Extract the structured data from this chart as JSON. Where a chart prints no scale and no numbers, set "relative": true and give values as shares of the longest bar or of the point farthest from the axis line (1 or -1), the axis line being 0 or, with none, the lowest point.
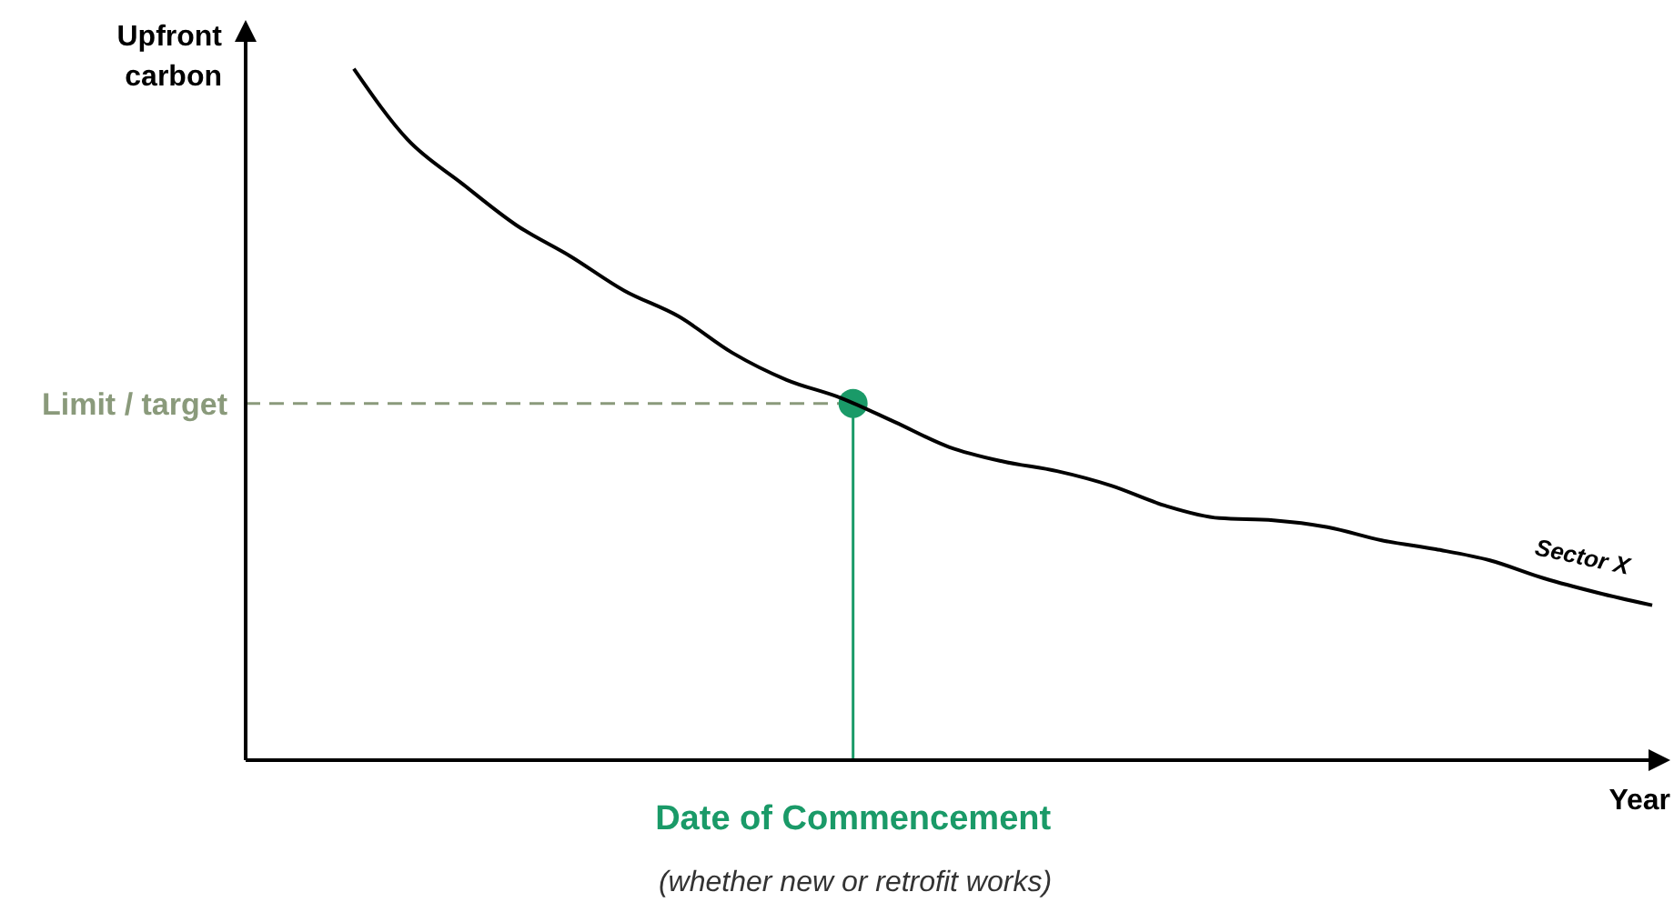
{
  "chart_data": {
    "type": "line",
    "relative": true,
    "ylabel": "Upfront carbon",
    "xlabel": "Year",
    "categories": [
      null,
      null,
      null,
      null,
      null,
      null,
      null,
      null,
      null,
      null,
      null,
      null,
      null,
      null,
      null,
      null,
      null,
      null,
      null,
      null,
      null,
      null,
      null,
      null,
      null,
      null,
      null
    ],
    "series": [
      {
        "name": "Sector X",
        "color": "#000000",
        "values": [
          null,
          null,
          1.0,
          0.897,
          0.834,
          0.774,
          0.729,
          0.679,
          0.642,
          0.589,
          0.55,
          0.524,
          0.489,
          0.453,
          0.432,
          0.418,
          0.397,
          0.368,
          0.35,
          0.347,
          0.337,
          0.318,
          0.305,
          0.289,
          0.263,
          0.242,
          0.224
        ]
      }
    ],
    "ref_lines": [
      {
        "axis": "y",
        "value": 0.516,
        "label": "Limit / target",
        "color": "#8a9a7b",
        "line_style": "dashed"
      }
    ],
    "annotations": [
      {
        "text": "Date of Commencement",
        "y": 0.516
      },
      "(whether new or retrofit works)"
    ],
    "marker": "none",
    "line_style": "solid"
  }
}
